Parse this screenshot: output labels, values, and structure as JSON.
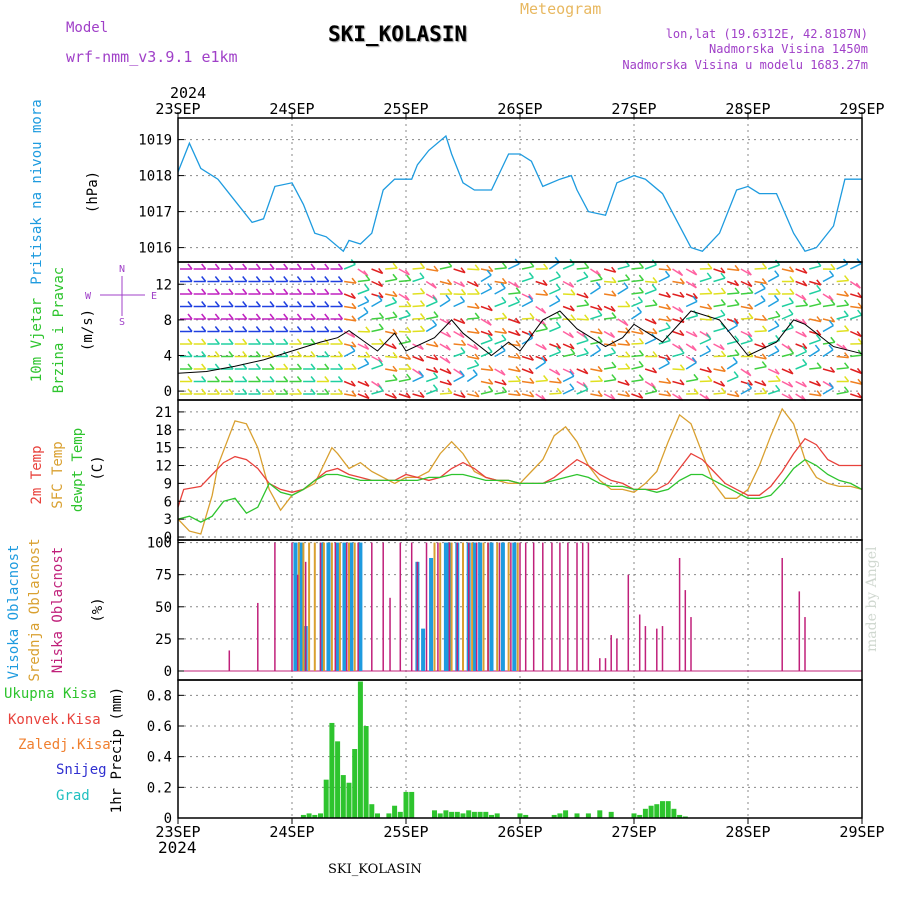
{
  "header": {
    "model_label": "Model",
    "model_name": "wrf-nmm_v3.9.1 e1km",
    "station": "SKI_KOLASIN",
    "meteogram": "Meteogram",
    "lonlat": "lon,lat (19.6312E, 42.8187N)",
    "elevation": "Nadmorska Visina 1450m",
    "model_elevation": "Nadmorska Visina u modelu 1683.27m",
    "year_top": "2024",
    "year_bottom": "2024",
    "footer_station": "SKI_KOLASIN",
    "watermark": "made by Angel"
  },
  "colors": {
    "pressure": "#1e9bdf",
    "temp2m": "#e8423c",
    "sfc": "#d9a030",
    "dewpt": "#2ec42e",
    "high_cloud": "#1e9bdf",
    "mid_cloud": "#d9a030",
    "low_cloud": "#c0207a",
    "precip": "#2ec42e",
    "wind_magenta": "#a040e0",
    "purple_text": "#a040c8"
  },
  "axes": {
    "date_labels": [
      "23SEP",
      "24SEP",
      "25SEP",
      "26SEP",
      "27SEP",
      "28SEP",
      "29SEP"
    ]
  },
  "panels": {
    "pressure": {
      "title": "Pritisak na nivou mora",
      "unit": "(hPa)",
      "ticks": [
        "1016",
        "1017",
        "1018",
        "1019"
      ]
    },
    "wind": {
      "title1": "10m Vjetar",
      "title2": "Brzina i Pravac",
      "unit": "(m/s)",
      "ticks": [
        "0",
        "4",
        "8",
        "12"
      ],
      "compass_n": "N",
      "compass_w": "W",
      "compass_e": "E",
      "compass_s": "S"
    },
    "temp": {
      "title1": "2m Temp",
      "title2": "SFC Temp",
      "title3": "dewpt Temp",
      "unit": "(C)",
      "ticks": [
        "0",
        "3",
        "6",
        "9",
        "12",
        "15",
        "18",
        "21"
      ]
    },
    "cloud": {
      "title1": "Visoka Oblacnost",
      "title2": "Srednja Oblacnost",
      "title3": "Niska Oblacnost",
      "unit": "(%)",
      "ticks": [
        "0",
        "25",
        "50",
        "75",
        "100"
      ]
    },
    "precip": {
      "legend": [
        "Ukupna Kisa",
        "Konvek.Kisa",
        "Zaledj.Kisa",
        "Snijeg",
        "Grad"
      ],
      "ylabel": "1hr Precip (mm)",
      "ticks": [
        "0",
        "0.2",
        "0.4",
        "0.6",
        "0.8"
      ]
    }
  },
  "chart_data": [
    {
      "type": "line",
      "title": "Pritisak na nivou mora",
      "ylabel": "(hPa)",
      "xlabel": "",
      "ylim": [
        1015.6,
        1019.6
      ],
      "x_unit": "days since 23SEP 00",
      "series": [
        {
          "name": "Pritisak na nivou mora",
          "x": [
            0,
            0.1,
            0.2,
            0.35,
            0.5,
            0.65,
            0.75,
            0.85,
            1.0,
            1.1,
            1.2,
            1.3,
            1.45,
            1.5,
            1.6,
            1.7,
            1.8,
            1.9,
            2.05,
            2.1,
            2.2,
            2.35,
            2.4,
            2.5,
            2.6,
            2.75,
            2.9,
            3.0,
            3.1,
            3.2,
            3.35,
            3.45,
            3.5,
            3.6,
            3.75,
            3.85,
            4.0,
            4.1,
            4.25,
            4.35,
            4.5,
            4.6,
            4.75,
            4.9,
            5.0,
            5.1,
            5.25,
            5.4,
            5.5,
            5.6,
            5.75,
            5.85,
            6.0
          ],
          "y": [
            1018.1,
            1018.9,
            1018.2,
            1017.9,
            1017.3,
            1016.7,
            1016.8,
            1017.7,
            1017.8,
            1017.2,
            1016.4,
            1016.3,
            1015.9,
            1016.2,
            1016.1,
            1016.4,
            1017.6,
            1017.9,
            1017.9,
            1018.3,
            1018.7,
            1019.1,
            1018.6,
            1017.8,
            1017.6,
            1017.6,
            1018.6,
            1018.6,
            1018.4,
            1017.7,
            1017.9,
            1018.0,
            1017.6,
            1017.0,
            1016.9,
            1017.8,
            1018.0,
            1017.9,
            1017.5,
            1016.9,
            1016.0,
            1015.9,
            1016.4,
            1017.6,
            1017.7,
            1017.5,
            1017.5,
            1016.4,
            1015.9,
            1016.0,
            1016.6,
            1017.9,
            1017.9
          ]
        }
      ]
    },
    {
      "type": "line",
      "title": "10m Vjetar Brzina i Pravac",
      "ylabel": "(m/s)",
      "xlabel": "",
      "ylim": [
        -1,
        14.5
      ],
      "x_unit": "days since 23SEP 00",
      "series": [
        {
          "name": "10m Vjetar",
          "x": [
            0,
            0.25,
            0.5,
            0.75,
            1.0,
            1.25,
            1.4,
            1.5,
            1.75,
            1.9,
            2.0,
            2.25,
            2.4,
            2.5,
            2.75,
            2.9,
            3.0,
            3.2,
            3.35,
            3.5,
            3.75,
            3.9,
            4.0,
            4.25,
            4.5,
            4.75,
            5.0,
            5.25,
            5.4,
            5.5,
            5.75,
            6.0
          ],
          "y": [
            2.0,
            2.2,
            2.8,
            3.5,
            4.5,
            5.5,
            6.0,
            6.8,
            4.5,
            6.5,
            4.5,
            6.0,
            8.0,
            6.5,
            4.0,
            5.5,
            4.5,
            8.0,
            9.0,
            7.0,
            5.0,
            6.0,
            7.5,
            5.5,
            9.0,
            8.0,
            4.0,
            5.5,
            8.0,
            7.5,
            5.0,
            4.2
          ]
        }
      ]
    },
    {
      "type": "line",
      "title": "2m Temp / SFC Temp / dewpt Temp",
      "ylabel": "(C)",
      "xlabel": "",
      "ylim": [
        -0.5,
        23
      ],
      "x_unit": "days since 23SEP 00",
      "series": [
        {
          "name": "2m Temp",
          "x": [
            0,
            0.05,
            0.2,
            0.3,
            0.4,
            0.5,
            0.6,
            0.7,
            0.8,
            0.9,
            1.0,
            1.1,
            1.2,
            1.3,
            1.4,
            1.5,
            1.6,
            1.7,
            1.8,
            1.9,
            2.0,
            2.1,
            2.2,
            2.3,
            2.4,
            2.5,
            2.6,
            2.7,
            2.8,
            2.9,
            3.0,
            3.1,
            3.2,
            3.3,
            3.4,
            3.5,
            3.6,
            3.7,
            3.8,
            3.9,
            4.0,
            4.1,
            4.2,
            4.3,
            4.4,
            4.5,
            4.6,
            4.7,
            4.8,
            4.9,
            5.0,
            5.1,
            5.2,
            5.3,
            5.4,
            5.5,
            5.6,
            5.7,
            5.8,
            5.9,
            6.0
          ],
          "y": [
            5,
            8,
            8.5,
            10.5,
            12.5,
            13.5,
            13,
            11.5,
            9,
            8,
            7.5,
            8,
            9.5,
            11,
            11.5,
            10.5,
            10,
            9.5,
            9.5,
            9.5,
            10.5,
            10,
            9.5,
            10,
            11.5,
            12.5,
            11.5,
            10,
            9.5,
            9.5,
            9,
            9,
            9,
            10,
            11.5,
            13,
            12,
            10.5,
            9.5,
            9,
            8,
            8,
            8,
            9,
            11.5,
            14,
            13,
            11,
            9,
            8,
            7,
            7,
            8.5,
            11,
            14,
            16.5,
            15.5,
            13,
            12,
            12,
            12
          ]
        },
        {
          "name": "SFC Temp",
          "x": [
            0,
            0.1,
            0.2,
            0.3,
            0.35,
            0.45,
            0.5,
            0.6,
            0.7,
            0.8,
            0.9,
            1.0,
            1.1,
            1.2,
            1.3,
            1.35,
            1.4,
            1.5,
            1.6,
            1.7,
            1.8,
            1.9,
            2.0,
            2.1,
            2.2,
            2.3,
            2.4,
            2.5,
            2.6,
            2.7,
            2.8,
            2.9,
            3.0,
            3.1,
            3.2,
            3.3,
            3.4,
            3.5,
            3.6,
            3.7,
            3.8,
            3.9,
            4.0,
            4.1,
            4.2,
            4.3,
            4.4,
            4.5,
            4.6,
            4.7,
            4.8,
            4.9,
            5.0,
            5.1,
            5.2,
            5.3,
            5.4,
            5.5,
            5.6,
            5.7,
            5.8,
            5.9,
            6.0
          ],
          "y": [
            3,
            1,
            0.5,
            7,
            12,
            17,
            19.5,
            19,
            15,
            8,
            4.5,
            7,
            8,
            9,
            13,
            15,
            14,
            11.5,
            12.5,
            11,
            10,
            9,
            10,
            10,
            11,
            14,
            16,
            14,
            11,
            10,
            9.5,
            9,
            9,
            11,
            13,
            17,
            18.5,
            16,
            12,
            9.5,
            8,
            8,
            7.5,
            9,
            11,
            16,
            20.5,
            19,
            14,
            9,
            6.5,
            6.5,
            8,
            12,
            17,
            21.5,
            19,
            13,
            10,
            9,
            8.5,
            8.5,
            8
          ]
        },
        {
          "name": "dewpt Temp",
          "x": [
            0,
            0.1,
            0.2,
            0.3,
            0.4,
            0.5,
            0.6,
            0.7,
            0.8,
            0.9,
            1.0,
            1.1,
            1.2,
            1.3,
            1.4,
            1.5,
            1.6,
            1.7,
            1.8,
            1.9,
            2.0,
            2.1,
            2.2,
            2.3,
            2.4,
            2.5,
            2.6,
            2.7,
            2.8,
            2.9,
            3.0,
            3.1,
            3.2,
            3.3,
            3.4,
            3.5,
            3.6,
            3.7,
            3.8,
            3.9,
            4.0,
            4.1,
            4.2,
            4.3,
            4.4,
            4.5,
            4.6,
            4.7,
            4.8,
            4.9,
            5.0,
            5.1,
            5.2,
            5.3,
            5.4,
            5.5,
            5.6,
            5.7,
            5.8,
            5.9,
            6.0
          ],
          "y": [
            3,
            3.5,
            2.5,
            3.5,
            6,
            6.5,
            4,
            5,
            9,
            7.5,
            7,
            8,
            9.5,
            10.5,
            10.5,
            10,
            9.5,
            9.5,
            9.5,
            9.5,
            9.5,
            9.5,
            10,
            10,
            10.5,
            10.5,
            10,
            9.5,
            9.5,
            9.5,
            9,
            9,
            9,
            9.5,
            10,
            10.5,
            10,
            9,
            8.5,
            8.5,
            8,
            8,
            7.5,
            8,
            9.5,
            10.5,
            10.5,
            9.5,
            8.5,
            7.5,
            6.5,
            6.5,
            7,
            9,
            11.5,
            13,
            12,
            10.5,
            9.5,
            9,
            8
          ]
        }
      ]
    },
    {
      "type": "bar",
      "title": "Visoka / Srednja / Niska Oblacnost",
      "ylabel": "(%)",
      "xlabel": "",
      "ylim": [
        -7,
        102
      ],
      "x_unit": "days since 23SEP 00",
      "series": [
        {
          "name": "Visoka Oblacnost",
          "x": [
            1.03,
            1.08,
            1.12,
            1.26,
            1.32,
            1.4,
            1.46,
            1.52,
            1.6,
            2.1,
            2.15,
            2.22,
            2.35,
            2.38,
            2.45,
            2.55,
            2.6,
            2.65,
            2.75,
            2.85,
            2.95
          ],
          "y": [
            100,
            100,
            35,
            100,
            100,
            100,
            100,
            100,
            100,
            85,
            33,
            88,
            100,
            100,
            100,
            100,
            100,
            100,
            100,
            100,
            100
          ]
        },
        {
          "name": "Srednja Oblacnost",
          "x": [
            1.06,
            1.1,
            1.15,
            1.2,
            1.28,
            1.35,
            1.42,
            1.5,
            1.55,
            2.25,
            2.3,
            2.4,
            2.5,
            2.58,
            2.68,
            2.72,
            2.8,
            2.9,
            2.98
          ],
          "y": [
            100,
            100,
            100,
            100,
            100,
            100,
            100,
            100,
            100,
            100,
            100,
            100,
            100,
            100,
            100,
            100,
            100,
            100,
            100
          ]
        },
        {
          "name": "Niska Oblacnost",
          "x": [
            0.45,
            0.7,
            0.85,
            1.0,
            1.05,
            1.12,
            1.25,
            1.38,
            1.48,
            1.58,
            1.7,
            1.8,
            1.86,
            1.95,
            2.05,
            2.1,
            2.18,
            2.28,
            2.38,
            2.45,
            2.55,
            2.62,
            2.72,
            2.82,
            2.92,
            3.0,
            3.05,
            3.12,
            3.2,
            3.28,
            3.35,
            3.42,
            3.5,
            3.55,
            3.6,
            3.7,
            3.75,
            3.8,
            3.85,
            3.95,
            4.05,
            4.1,
            4.2,
            4.25,
            4.4,
            4.45,
            4.5,
            5.3,
            5.45,
            5.5
          ],
          "y": [
            16,
            53,
            100,
            100,
            75,
            85,
            100,
            100,
            100,
            100,
            100,
            100,
            57,
            100,
            100,
            85,
            100,
            100,
            100,
            100,
            100,
            100,
            100,
            100,
            100,
            100,
            100,
            100,
            100,
            100,
            100,
            100,
            100,
            100,
            100,
            10,
            10,
            28,
            25,
            75,
            44,
            35,
            33,
            35,
            88,
            63,
            42,
            88,
            62,
            42
          ]
        }
      ]
    },
    {
      "type": "bar",
      "title": "1hr Precip",
      "ylabel": "1hr Precip (mm)",
      "xlabel": "",
      "ylim": [
        0,
        0.9
      ],
      "x_unit": "days since 23SEP 00",
      "series": [
        {
          "name": "Ukupna Kisa",
          "x": [
            1.1,
            1.15,
            1.2,
            1.25,
            1.3,
            1.35,
            1.4,
            1.45,
            1.5,
            1.55,
            1.6,
            1.65,
            1.7,
            1.75,
            1.85,
            1.9,
            1.95,
            2.0,
            2.05,
            2.25,
            2.3,
            2.35,
            2.4,
            2.45,
            2.5,
            2.55,
            2.6,
            2.65,
            2.7,
            2.75,
            2.8,
            3.0,
            3.05,
            3.3,
            3.35,
            3.4,
            3.5,
            3.6,
            3.7,
            3.8,
            4.0,
            4.05,
            4.1,
            4.15,
            4.2,
            4.25,
            4.3,
            4.35,
            4.4,
            4.45
          ],
          "y": [
            0.02,
            0.03,
            0.02,
            0.03,
            0.25,
            0.62,
            0.5,
            0.28,
            0.23,
            0.45,
            0.89,
            0.6,
            0.09,
            0.03,
            0.03,
            0.08,
            0.04,
            0.17,
            0.17,
            0.05,
            0.03,
            0.05,
            0.04,
            0.04,
            0.03,
            0.05,
            0.04,
            0.04,
            0.04,
            0.02,
            0.03,
            0.03,
            0.02,
            0.02,
            0.03,
            0.05,
            0.03,
            0.03,
            0.05,
            0.04,
            0.03,
            0.02,
            0.06,
            0.08,
            0.09,
            0.11,
            0.11,
            0.06,
            0.02,
            0.01
          ]
        }
      ]
    }
  ]
}
